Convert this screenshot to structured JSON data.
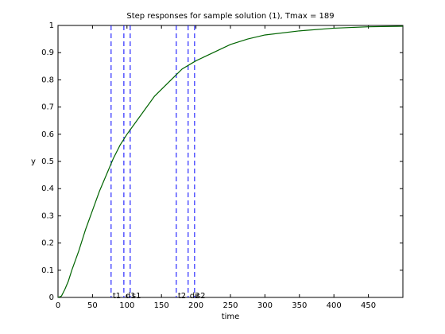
{
  "chart_data": {
    "type": "line",
    "title": "Step responses for sample solution (1), Tmax = 189",
    "xlabel": "time",
    "ylabel": "y",
    "x": [
      0,
      5,
      10,
      15,
      20,
      30,
      40,
      50,
      60,
      70,
      80,
      90,
      100,
      120,
      140,
      160,
      180,
      200,
      225,
      250,
      275,
      300,
      350,
      400,
      450,
      500
    ],
    "series": [
      {
        "color": "#006400",
        "values": [
          0,
          0.005,
          0.03,
          0.06,
          0.1,
          0.17,
          0.25,
          0.32,
          0.39,
          0.45,
          0.51,
          0.56,
          0.6,
          0.67,
          0.74,
          0.79,
          0.84,
          0.87,
          0.9,
          0.93,
          0.95,
          0.965,
          0.98,
          0.99,
          0.995,
          0.997
        ]
      }
    ],
    "markers": {
      "color": "#0000ff",
      "items": [
        {
          "label": "t1",
          "x": 77
        },
        {
          "label": "d1",
          "x": 95.5
        },
        {
          "label": "s1",
          "x": 104.7
        },
        {
          "label": "t2",
          "x": 171.5
        },
        {
          "label": "d2",
          "x": 188.7
        },
        {
          "label": "s2",
          "x": 198
        }
      ]
    },
    "xlim": [
      0,
      500
    ],
    "ylim": [
      0,
      1
    ],
    "xticks": [
      0,
      50,
      100,
      150,
      200,
      250,
      300,
      350,
      400,
      450
    ],
    "yticks": [
      0,
      0.1,
      0.2,
      0.3,
      0.4,
      0.5,
      0.6,
      0.7,
      0.8,
      0.9,
      1
    ]
  }
}
